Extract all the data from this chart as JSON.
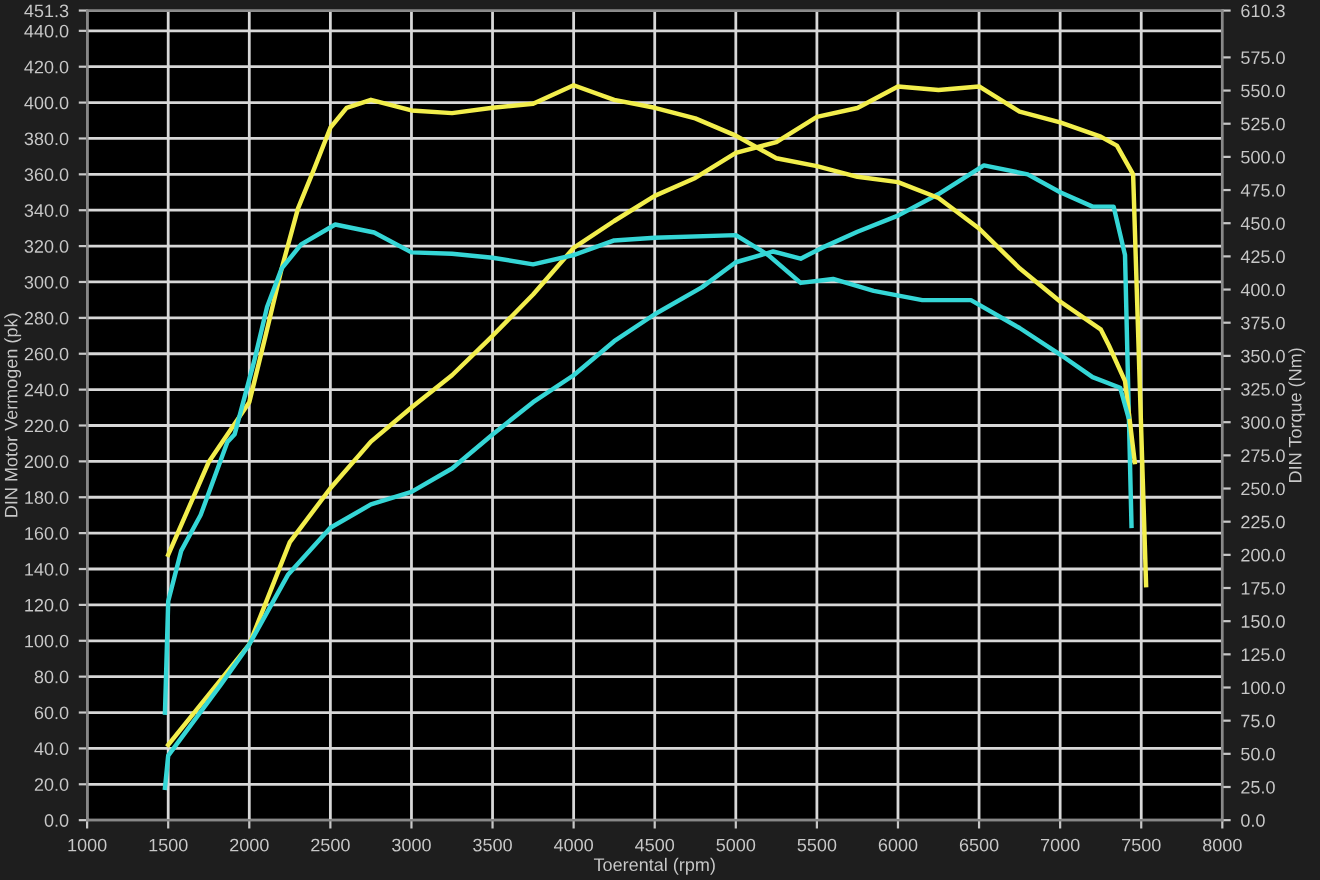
{
  "chart_data": {
    "type": "line",
    "xlabel": "Toerental (rpm)",
    "ylabel": "DIN Motor Vermogen (pk)",
    "y2label": "DIN Torque (Nm)",
    "xlim": [
      1000,
      8000
    ],
    "xticks": [
      1000,
      1500,
      2000,
      2500,
      3000,
      3500,
      4000,
      4500,
      5000,
      5500,
      6000,
      6500,
      7000,
      7500,
      8000
    ],
    "ylim": [
      0,
      451.3
    ],
    "yticks": [
      {
        "value": 0,
        "label": "0.0"
      },
      {
        "value": 20,
        "label": "20.0"
      },
      {
        "value": 40,
        "label": "40.0"
      },
      {
        "value": 60,
        "label": "60.0"
      },
      {
        "value": 80,
        "label": "80.0"
      },
      {
        "value": 100,
        "label": "100.0"
      },
      {
        "value": 120,
        "label": "120.0"
      },
      {
        "value": 140,
        "label": "140.0"
      },
      {
        "value": 160,
        "label": "160.0"
      },
      {
        "value": 180,
        "label": "180.0"
      },
      {
        "value": 200,
        "label": "200.0"
      },
      {
        "value": 220,
        "label": "220.0"
      },
      {
        "value": 240,
        "label": "240.0"
      },
      {
        "value": 260,
        "label": "260.0"
      },
      {
        "value": 280,
        "label": "280.0"
      },
      {
        "value": 300,
        "label": "300.0"
      },
      {
        "value": 320,
        "label": "320.0"
      },
      {
        "value": 340,
        "label": "340.0"
      },
      {
        "value": 360,
        "label": "360.0"
      },
      {
        "value": 380,
        "label": "380.0"
      },
      {
        "value": 400,
        "label": "400.0"
      },
      {
        "value": 420,
        "label": "420.0"
      },
      {
        "value": 440,
        "label": "440.0"
      },
      {
        "value": 451.3,
        "label": "451.3"
      }
    ],
    "y2lim": [
      0,
      610.3
    ],
    "y2ticks": [
      {
        "value": 0,
        "label": "0.0"
      },
      {
        "value": 25,
        "label": "25.0"
      },
      {
        "value": 50,
        "label": "50.0"
      },
      {
        "value": 75,
        "label": "75.0"
      },
      {
        "value": 100,
        "label": "100.0"
      },
      {
        "value": 125,
        "label": "125.0"
      },
      {
        "value": 150,
        "label": "150.0"
      },
      {
        "value": 175,
        "label": "175.0"
      },
      {
        "value": 200,
        "label": "200.0"
      },
      {
        "value": 225,
        "label": "225.0"
      },
      {
        "value": 250,
        "label": "250.0"
      },
      {
        "value": 275,
        "label": "275.0"
      },
      {
        "value": 300,
        "label": "300.0"
      },
      {
        "value": 325,
        "label": "325.0"
      },
      {
        "value": 350,
        "label": "350.0"
      },
      {
        "value": 375,
        "label": "375.0"
      },
      {
        "value": 400,
        "label": "400.0"
      },
      {
        "value": 425,
        "label": "425.0"
      },
      {
        "value": 450,
        "label": "450.0"
      },
      {
        "value": 475,
        "label": "475.0"
      },
      {
        "value": 500,
        "label": "500.0"
      },
      {
        "value": 525,
        "label": "525.0"
      },
      {
        "value": 550,
        "label": "550.0"
      },
      {
        "value": 575,
        "label": "575.0"
      },
      {
        "value": 610.3,
        "label": "610.3"
      }
    ],
    "grid": true,
    "series": [
      {
        "color": "#f2ee4c",
        "x": [
          1500,
          1750,
          2000,
          2250,
          2500,
          2750,
          3000,
          3250,
          3500,
          3750,
          4000,
          4250,
          4500,
          4750,
          5000,
          5250,
          5500,
          5750,
          6000,
          6250,
          6500,
          6750,
          7000,
          7250,
          7350,
          7450,
          7530
        ],
        "values": [
          42,
          70,
          98,
          155,
          185,
          211,
          230,
          248,
          270,
          293,
          319,
          334,
          348,
          358,
          372,
          378,
          392,
          397,
          409,
          407,
          409,
          395,
          389,
          381,
          376,
          360,
          131
        ]
      },
      {
        "color": "#f2ee4c",
        "axis": "y2",
        "x": [
          1500,
          1750,
          2000,
          2100,
          2200,
          2300,
          2400,
          2500,
          2600,
          2750,
          3000,
          3250,
          3500,
          3750,
          4000,
          4250,
          4500,
          4750,
          5000,
          5250,
          5500,
          5750,
          6000,
          6250,
          6500,
          6750,
          7000,
          7250,
          7300,
          7400,
          7460
        ],
        "values": [
          200,
          270,
          315,
          365,
          416,
          461,
          491,
          522,
          537,
          543,
          535,
          533,
          537,
          540,
          554,
          543,
          537,
          529,
          516,
          499,
          493,
          485,
          481,
          469,
          446,
          416,
          391,
          370,
          358,
          331,
          270
        ]
      },
      {
        "color": "#35d6d6",
        "x": [
          1480,
          1500,
          1820,
          2000,
          2240,
          2500,
          2750,
          3000,
          3250,
          3500,
          3750,
          4000,
          4250,
          4500,
          4790,
          5000,
          5230,
          5400,
          5530,
          5750,
          6000,
          6250,
          6530,
          6800,
          7000,
          7200,
          7330,
          7400,
          7440
        ],
        "values": [
          18,
          36,
          75,
          98,
          137,
          163,
          176,
          183,
          196,
          215,
          233,
          248,
          267,
          282,
          297,
          311,
          317,
          313,
          319,
          328,
          337,
          349,
          365,
          360,
          350,
          342,
          342,
          315,
          164
        ]
      },
      {
        "color": "#35d6d6",
        "axis": "y2",
        "x": [
          1480,
          1500,
          1580,
          1700,
          1865,
          1910,
          2030,
          2110,
          2200,
          2320,
          2530,
          2770,
          3000,
          3250,
          3500,
          3750,
          4000,
          4250,
          4500,
          5000,
          5200,
          5400,
          5600,
          5850,
          6150,
          6450,
          6750,
          7000,
          7200,
          7370,
          7420
        ],
        "values": [
          81,
          165,
          203,
          230,
          285,
          291,
          346,
          387,
          416,
          434,
          449,
          443,
          428,
          427,
          424,
          419,
          426,
          437,
          439,
          441,
          426,
          405,
          408,
          399,
          392,
          392,
          371,
          351,
          334,
          326,
          304
        ]
      }
    ]
  }
}
